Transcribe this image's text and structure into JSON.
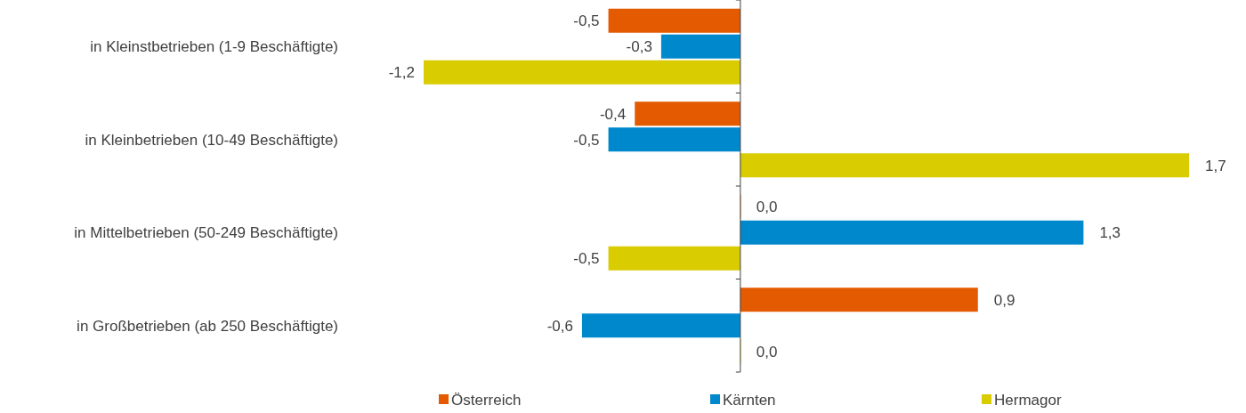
{
  "chart_data": {
    "type": "bar",
    "orientation": "horizontal",
    "legend": "bottom",
    "categories": [
      "in Kleinstbetrieben (1-9 Beschäftigte)",
      "in Kleinbetrieben (10-49 Beschäftigte)",
      "in Mittelbetrieben (50-249 Beschäftigte)",
      "in Großbetrieben (ab 250 Beschäftigte)"
    ],
    "series": [
      {
        "name": "Österreich",
        "color": "#e35a00",
        "values": [
          -0.5,
          -0.4,
          0.0,
          0.9
        ],
        "value_labels": [
          "-0,5",
          "-0,4",
          "0,0",
          "0,9"
        ]
      },
      {
        "name": "Kärnten",
        "color": "#0088cc",
        "values": [
          -0.3,
          -0.5,
          1.3,
          -0.6
        ],
        "value_labels": [
          "-0,3",
          "-0,5",
          "1,3",
          "-0,6"
        ]
      },
      {
        "name": "Hermagor",
        "color": "#d9cc00",
        "values": [
          -1.2,
          1.7,
          -0.5,
          0.0
        ],
        "value_labels": [
          "-1,2",
          "1,7",
          "-0,5",
          "0,0"
        ]
      }
    ]
  }
}
